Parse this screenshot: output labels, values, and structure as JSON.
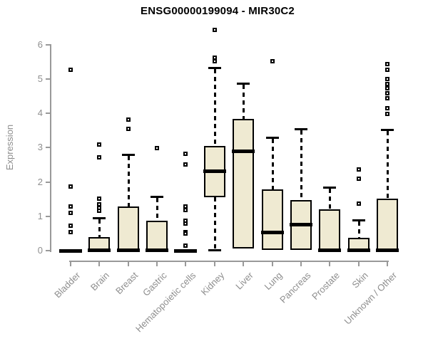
{
  "chart_data": {
    "type": "boxplot",
    "title": "ENSG00000199094 - MIR30C2",
    "ylabel": "Expression",
    "xlabel": "",
    "ylim": [
      0,
      6.6
    ],
    "yticks": [
      0,
      1,
      2,
      3,
      4,
      5,
      6
    ],
    "grid": false,
    "legend": "none",
    "categories": [
      "Bladder",
      "Brain",
      "Breast",
      "Gastric",
      "Hematopoietic cells",
      "Kidney",
      "Liver",
      "Lung",
      "Pancreas",
      "Prostate",
      "Skin",
      "Unknown / Other"
    ],
    "series": [
      {
        "name": "Bladder",
        "q1": 0,
        "median": 0.01,
        "q3": 0.03,
        "whisker_low": 0,
        "whisker_high": 0.03,
        "outliers": [
          5.27,
          1.87,
          1.28,
          1.11,
          0.73,
          0.53
        ]
      },
      {
        "name": "Brain",
        "q1": 0,
        "median": 0.02,
        "q3": 0.4,
        "whisker_low": 0,
        "whisker_high": 0.95,
        "outliers": [
          3.09,
          2.71,
          1.52,
          1.35,
          1.25,
          1.17
        ]
      },
      {
        "name": "Breast",
        "q1": 0,
        "median": 0.03,
        "q3": 1.28,
        "whisker_low": 0,
        "whisker_high": 2.8,
        "outliers": [
          3.82,
          3.54
        ]
      },
      {
        "name": "Gastric",
        "q1": 0,
        "median": 0.02,
        "q3": 0.88,
        "whisker_low": 0,
        "whisker_high": 1.57,
        "outliers": [
          2.99
        ]
      },
      {
        "name": "Hematopoietic cells",
        "q1": 0,
        "median": 0.01,
        "q3": 0.03,
        "whisker_low": 0,
        "whisker_high": 0.03,
        "outliers": [
          2.82,
          2.52,
          1.28,
          1.19,
          0.87,
          0.78,
          0.55,
          0.49,
          0.15
        ]
      },
      {
        "name": "Kidney",
        "q1": 1.56,
        "median": 2.33,
        "q3": 3.06,
        "whisker_low": 0.03,
        "whisker_high": 5.33,
        "outliers": [
          6.43,
          5.62,
          5.52
        ]
      },
      {
        "name": "Liver",
        "q1": 0.06,
        "median": 2.9,
        "q3": 3.85,
        "whisker_low": 0.06,
        "whisker_high": 4.87,
        "outliers": []
      },
      {
        "name": "Lung",
        "q1": 0.02,
        "median": 0.55,
        "q3": 1.78,
        "whisker_low": 0.02,
        "whisker_high": 3.31,
        "outliers": [
          5.52
        ]
      },
      {
        "name": "Pancreas",
        "q1": 0.02,
        "median": 0.76,
        "q3": 1.47,
        "whisker_low": 0.02,
        "whisker_high": 3.54,
        "outliers": []
      },
      {
        "name": "Prostate",
        "q1": 0,
        "median": 0.03,
        "q3": 1.2,
        "whisker_low": 0,
        "whisker_high": 1.85,
        "outliers": []
      },
      {
        "name": "Skin",
        "q1": 0,
        "median": 0.02,
        "q3": 0.38,
        "whisker_low": 0,
        "whisker_high": 0.9,
        "outliers": [
          2.37,
          2.1,
          1.37
        ]
      },
      {
        "name": "Unknown / Other",
        "q1": 0,
        "median": 0.03,
        "q3": 1.52,
        "whisker_low": 0,
        "whisker_high": 3.53,
        "outliers": [
          5.43,
          5.28,
          5.01,
          4.86,
          4.73,
          4.58,
          4.45,
          4.15,
          3.98
        ]
      }
    ],
    "colors": {
      "box_fill": "#efead2",
      "box_border": "#000000",
      "median": "#000000",
      "whisker": "#000000",
      "outlier": "#000000",
      "axis": "#999999",
      "tick_text": "#8e8e8e",
      "title_text": "#000000",
      "background": "#ffffff"
    }
  }
}
